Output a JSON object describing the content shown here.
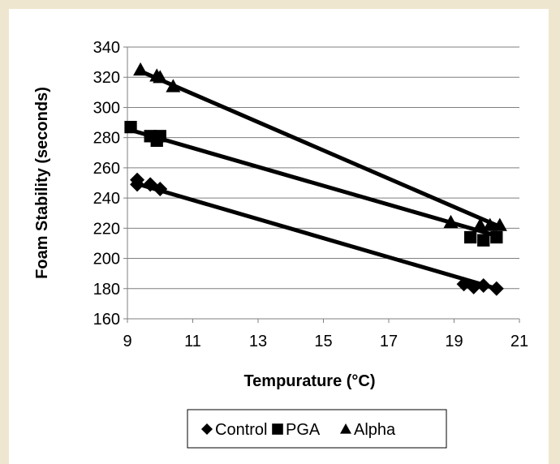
{
  "chart_data": {
    "type": "scatter",
    "title": "",
    "xlabel": "Tempurature (°C)",
    "ylabel": "Foam Stability (seconds)",
    "xlim": [
      9,
      21
    ],
    "ylim": [
      160,
      340
    ],
    "xticks": [
      9,
      11,
      13,
      15,
      17,
      19,
      21
    ],
    "yticks": [
      160,
      180,
      200,
      220,
      240,
      260,
      280,
      300,
      320,
      340
    ],
    "grid": "horizontal",
    "legend_position": "bottom",
    "series": [
      {
        "name": "Control",
        "marker": "diamond",
        "color": "#000000",
        "points": [
          [
            9.3,
            252
          ],
          [
            9.3,
            249
          ],
          [
            9.7,
            249
          ],
          [
            10.0,
            246
          ],
          [
            19.3,
            183
          ],
          [
            19.6,
            181
          ],
          [
            19.9,
            182
          ],
          [
            20.3,
            180
          ]
        ],
        "trendline": [
          [
            9.2,
            250
          ],
          [
            20.3,
            180
          ]
        ]
      },
      {
        "name": "PGA",
        "marker": "square",
        "color": "#000000",
        "points": [
          [
            9.1,
            287
          ],
          [
            9.7,
            281
          ],
          [
            9.9,
            278
          ],
          [
            10.0,
            281
          ],
          [
            19.5,
            214
          ],
          [
            19.9,
            212
          ],
          [
            20.3,
            214
          ]
        ],
        "trendline": [
          [
            9.1,
            285
          ],
          [
            20.3,
            215
          ]
        ]
      },
      {
        "name": "Alpha",
        "marker": "triangle",
        "color": "#000000",
        "points": [
          [
            9.4,
            325
          ],
          [
            9.9,
            321
          ],
          [
            10.0,
            320
          ],
          [
            10.4,
            314
          ],
          [
            18.9,
            224
          ],
          [
            19.8,
            222
          ],
          [
            20.1,
            222
          ],
          [
            20.4,
            222
          ]
        ],
        "trendline": [
          [
            9.4,
            324
          ],
          [
            20.4,
            221
          ]
        ]
      }
    ]
  },
  "legend": {
    "items": [
      {
        "marker": "diamond",
        "label": "Control"
      },
      {
        "marker": "square",
        "label": "PGA"
      },
      {
        "marker": "triangle",
        "label": "Alpha"
      }
    ]
  }
}
